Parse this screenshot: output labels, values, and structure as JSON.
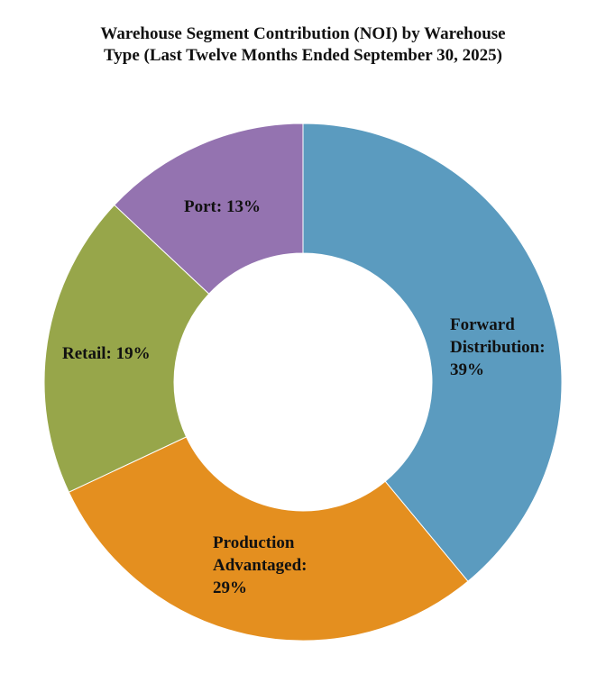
{
  "chart_data": {
    "type": "pie",
    "title_lines": [
      "Warehouse Segment Contribution (NOI) by Warehouse",
      "Type (Last Twelve Months Ended September 30, 2025)"
    ],
    "donut": true,
    "unit": "%",
    "slices": [
      {
        "name": "Forward Distribution",
        "value": 39,
        "color": "#5b9bbf",
        "label_lines": [
          "Forward",
          "Distribution:",
          "39%"
        ]
      },
      {
        "name": "Production Advantaged",
        "value": 29,
        "color": "#e48f1f",
        "label_lines": [
          "Production",
          "Advantaged:",
          "29%"
        ]
      },
      {
        "name": "Retail",
        "value": 19,
        "color": "#97a64a",
        "label_lines": [
          "Retail: 19%"
        ]
      },
      {
        "name": "Port",
        "value": 13,
        "color": "#9473b0",
        "label_lines": [
          "Port: 13%"
        ]
      }
    ]
  }
}
